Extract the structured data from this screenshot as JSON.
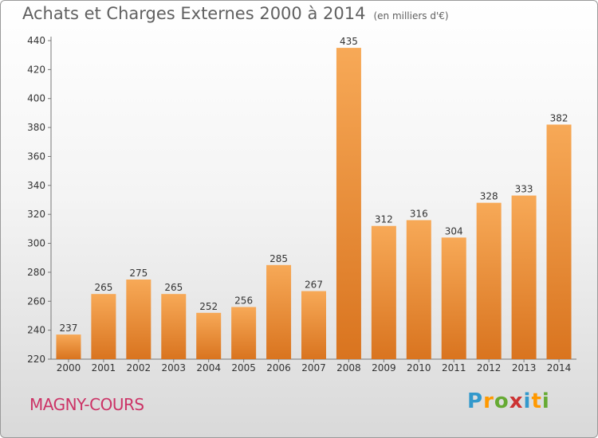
{
  "header": {
    "title": "Achats et Charges Externes 2000 à 2014",
    "unit": "(en milliers d'€)"
  },
  "footer": {
    "place": "MAGNY-COURS",
    "logo": [
      "P",
      "r",
      "o",
      "x",
      "i",
      "t",
      "i"
    ],
    "logo_colors": [
      "#3399cc",
      "#ff9900",
      "#66aa33",
      "#cc3333",
      "#3399cc",
      "#ff9900",
      "#66aa33"
    ]
  },
  "chart_data": {
    "type": "bar",
    "title": "Achats et Charges Externes 2000 à 2014",
    "subtitle": "(en milliers d'€)",
    "categories": [
      "2000",
      "2001",
      "2002",
      "2003",
      "2004",
      "2005",
      "2006",
      "2007",
      "2008",
      "2009",
      "2010",
      "2011",
      "2012",
      "2013",
      "2014"
    ],
    "values": [
      237,
      265,
      275,
      265,
      252,
      256,
      285,
      267,
      435,
      312,
      316,
      304,
      328,
      333,
      382
    ],
    "ylim": [
      220,
      440
    ],
    "yticks": [
      220,
      240,
      260,
      280,
      300,
      320,
      340,
      360,
      380,
      400,
      420,
      440
    ],
    "grid": false,
    "bar_color_top": "#f7a957",
    "bar_color_bottom": "#d9741f"
  }
}
